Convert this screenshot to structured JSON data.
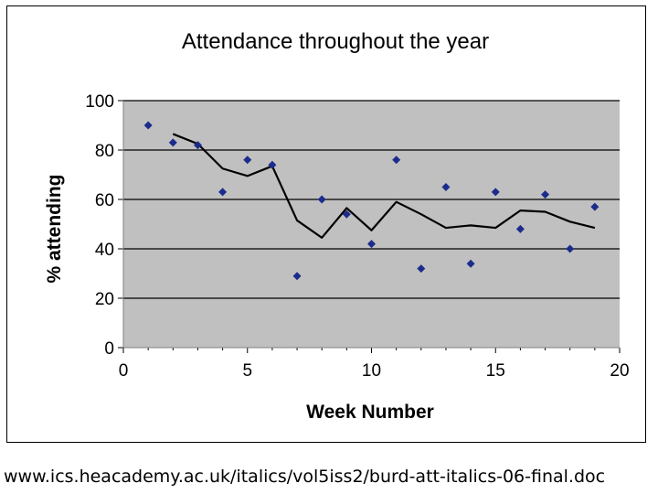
{
  "chart_data": {
    "type": "scatter",
    "title": "Attendance throughout the year",
    "xlabel": "Week Number",
    "ylabel": "% attending",
    "xlim": [
      0,
      20
    ],
    "ylim": [
      0,
      100
    ],
    "xticks": [
      0,
      5,
      10,
      15,
      20
    ],
    "yticks": [
      0,
      20,
      40,
      60,
      80,
      100
    ],
    "grid": true,
    "legend": "none",
    "colors": {
      "plot_background": "#c0c0c0",
      "gridline": "#000000",
      "points": "#1c2c8c",
      "trend_line": "#000000"
    },
    "points": {
      "x": [
        1,
        2,
        3,
        4,
        5,
        6,
        7,
        8,
        9,
        10,
        11,
        12,
        13,
        14,
        15,
        16,
        17,
        18,
        19
      ],
      "y": [
        90,
        83,
        82,
        63,
        76,
        74,
        29,
        60,
        54,
        42,
        76,
        32,
        65,
        34,
        63,
        48,
        62,
        40,
        57
      ]
    },
    "trend": {
      "x": [
        2,
        3,
        4,
        5,
        6,
        7,
        8,
        9,
        10,
        11,
        12,
        13,
        14,
        15,
        16,
        17,
        18,
        19
      ],
      "y": [
        86.5,
        82.5,
        72.5,
        69.5,
        73.5,
        51.5,
        44.5,
        56.5,
        47.5,
        59.0,
        54.0,
        48.5,
        49.5,
        48.5,
        55.5,
        55.0,
        51.0,
        48.5
      ]
    }
  },
  "caption": "www.ics.heacademy.ac.uk/italics/vol5iss2/burd-att-italics-06-final.doc"
}
